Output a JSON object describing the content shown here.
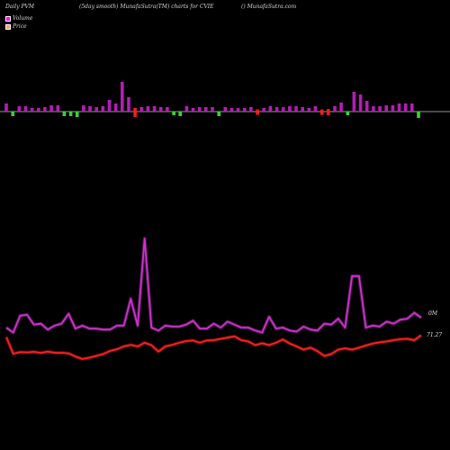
{
  "header": {
    "left": "Daily PVM",
    "middle": "(5day smooth) MunafaSutra(TM) charts for CVIE",
    "right": "() MunafaSutra.com"
  },
  "legend": {
    "items": [
      {
        "label": "Volume",
        "color": "#ff00ff"
      },
      {
        "label": "Price",
        "color": "#f5a07a"
      }
    ]
  },
  "colors": {
    "up_bar": "#b51db5",
    "down_bar": "#ff1a1a",
    "green_bar": "#33d633",
    "volume_line": "#cc33cc",
    "price_line": "#ff2020",
    "baseline": "#cccccc"
  },
  "chart_data": {
    "type": "line",
    "title": "(5day smooth) MunafaSutra(TM) charts for CVIE",
    "last_values": {
      "volume": "0M",
      "price": "71.27"
    },
    "volume": [
      0.1,
      0.05,
      0.22,
      0.23,
      0.13,
      0.14,
      0.08,
      0.12,
      0.14,
      0.24,
      0.09,
      0.12,
      0.09,
      0.09,
      0.08,
      0.08,
      0.12,
      0.12,
      0.39,
      0.12,
      1.0,
      0.1,
      0.07,
      0.12,
      0.11,
      0.11,
      0.13,
      0.17,
      0.09,
      0.09,
      0.14,
      0.1,
      0.16,
      0.13,
      0.1,
      0.1,
      0.07,
      0.05,
      0.21,
      0.09,
      0.1,
      0.07,
      0.06,
      0.11,
      0.08,
      0.07,
      0.14,
      0.13,
      0.19,
      0.1,
      0.62,
      0.62,
      0.1,
      0.12,
      0.11,
      0.16,
      0.14,
      0.18,
      0.19,
      0.25,
      0.2
    ],
    "price": [
      71.15,
      70.1,
      70.2,
      70.18,
      70.22,
      70.15,
      70.24,
      70.16,
      70.16,
      70.12,
      69.92,
      69.76,
      69.84,
      69.96,
      70.08,
      70.28,
      70.38,
      70.56,
      70.66,
      70.56,
      70.8,
      70.64,
      70.24,
      70.56,
      70.66,
      70.8,
      70.9,
      70.94,
      70.8,
      70.94,
      70.96,
      71.04,
      71.12,
      71.2,
      70.96,
      70.88,
      70.64,
      70.76,
      70.64,
      70.8,
      71.0,
      70.74,
      70.56,
      70.36,
      70.48,
      70.26,
      69.96,
      70.08,
      70.36,
      70.44,
      70.36,
      70.48,
      70.62,
      70.74,
      70.82,
      70.88,
      70.96,
      71.02,
      71.04,
      70.96,
      71.27
    ],
    "bars": [
      {
        "h": 9,
        "c": "up"
      },
      {
        "h": 5,
        "c": "green"
      },
      {
        "h": 6,
        "c": "up"
      },
      {
        "h": 6,
        "c": "up"
      },
      {
        "h": 4,
        "c": "up"
      },
      {
        "h": 4,
        "c": "up"
      },
      {
        "h": 5,
        "c": "up"
      },
      {
        "h": 7,
        "c": "up"
      },
      {
        "h": 7,
        "c": "up"
      },
      {
        "h": 5,
        "c": "green"
      },
      {
        "h": 5,
        "c": "green"
      },
      {
        "h": 6,
        "c": "green"
      },
      {
        "h": 7,
        "c": "up"
      },
      {
        "h": 6,
        "c": "up"
      },
      {
        "h": 5,
        "c": "up"
      },
      {
        "h": 6,
        "c": "up"
      },
      {
        "h": 13,
        "c": "up"
      },
      {
        "h": 9,
        "c": "up"
      },
      {
        "h": 33,
        "c": "up"
      },
      {
        "h": 16,
        "c": "up"
      },
      {
        "h": 10,
        "c": "down"
      },
      {
        "h": 5,
        "c": "up"
      },
      {
        "h": 6,
        "c": "up"
      },
      {
        "h": 6,
        "c": "up"
      },
      {
        "h": 5,
        "c": "up"
      },
      {
        "h": 5,
        "c": "up"
      },
      {
        "h": 4,
        "c": "green"
      },
      {
        "h": 5,
        "c": "green"
      },
      {
        "h": 6,
        "c": "up"
      },
      {
        "h": 4,
        "c": "up"
      },
      {
        "h": 5,
        "c": "up"
      },
      {
        "h": 5,
        "c": "up"
      },
      {
        "h": 5,
        "c": "up"
      },
      {
        "h": 5,
        "c": "green"
      },
      {
        "h": 5,
        "c": "up"
      },
      {
        "h": 4,
        "c": "up"
      },
      {
        "h": 4,
        "c": "up"
      },
      {
        "h": 4,
        "c": "up"
      },
      {
        "h": 5,
        "c": "up"
      },
      {
        "h": 6,
        "c": "down"
      },
      {
        "h": 4,
        "c": "up"
      },
      {
        "h": 6,
        "c": "up"
      },
      {
        "h": 5,
        "c": "up"
      },
      {
        "h": 5,
        "c": "up"
      },
      {
        "h": 6,
        "c": "up"
      },
      {
        "h": 6,
        "c": "up"
      },
      {
        "h": 5,
        "c": "up"
      },
      {
        "h": 4,
        "c": "up"
      },
      {
        "h": 6,
        "c": "up"
      },
      {
        "h": 6,
        "c": "down"
      },
      {
        "h": 7,
        "c": "down"
      },
      {
        "h": 6,
        "c": "up"
      },
      {
        "h": 10,
        "c": "up"
      },
      {
        "h": 4,
        "c": "green"
      },
      {
        "h": 22,
        "c": "up"
      },
      {
        "h": 19,
        "c": "up"
      },
      {
        "h": 12,
        "c": "up"
      },
      {
        "h": 6,
        "c": "up"
      },
      {
        "h": 6,
        "c": "up"
      },
      {
        "h": 7,
        "c": "up"
      },
      {
        "h": 7,
        "c": "up"
      },
      {
        "h": 9,
        "c": "up"
      },
      {
        "h": 9,
        "c": "up"
      },
      {
        "h": 9,
        "c": "up"
      },
      {
        "h": 7,
        "c": "green"
      }
    ]
  }
}
